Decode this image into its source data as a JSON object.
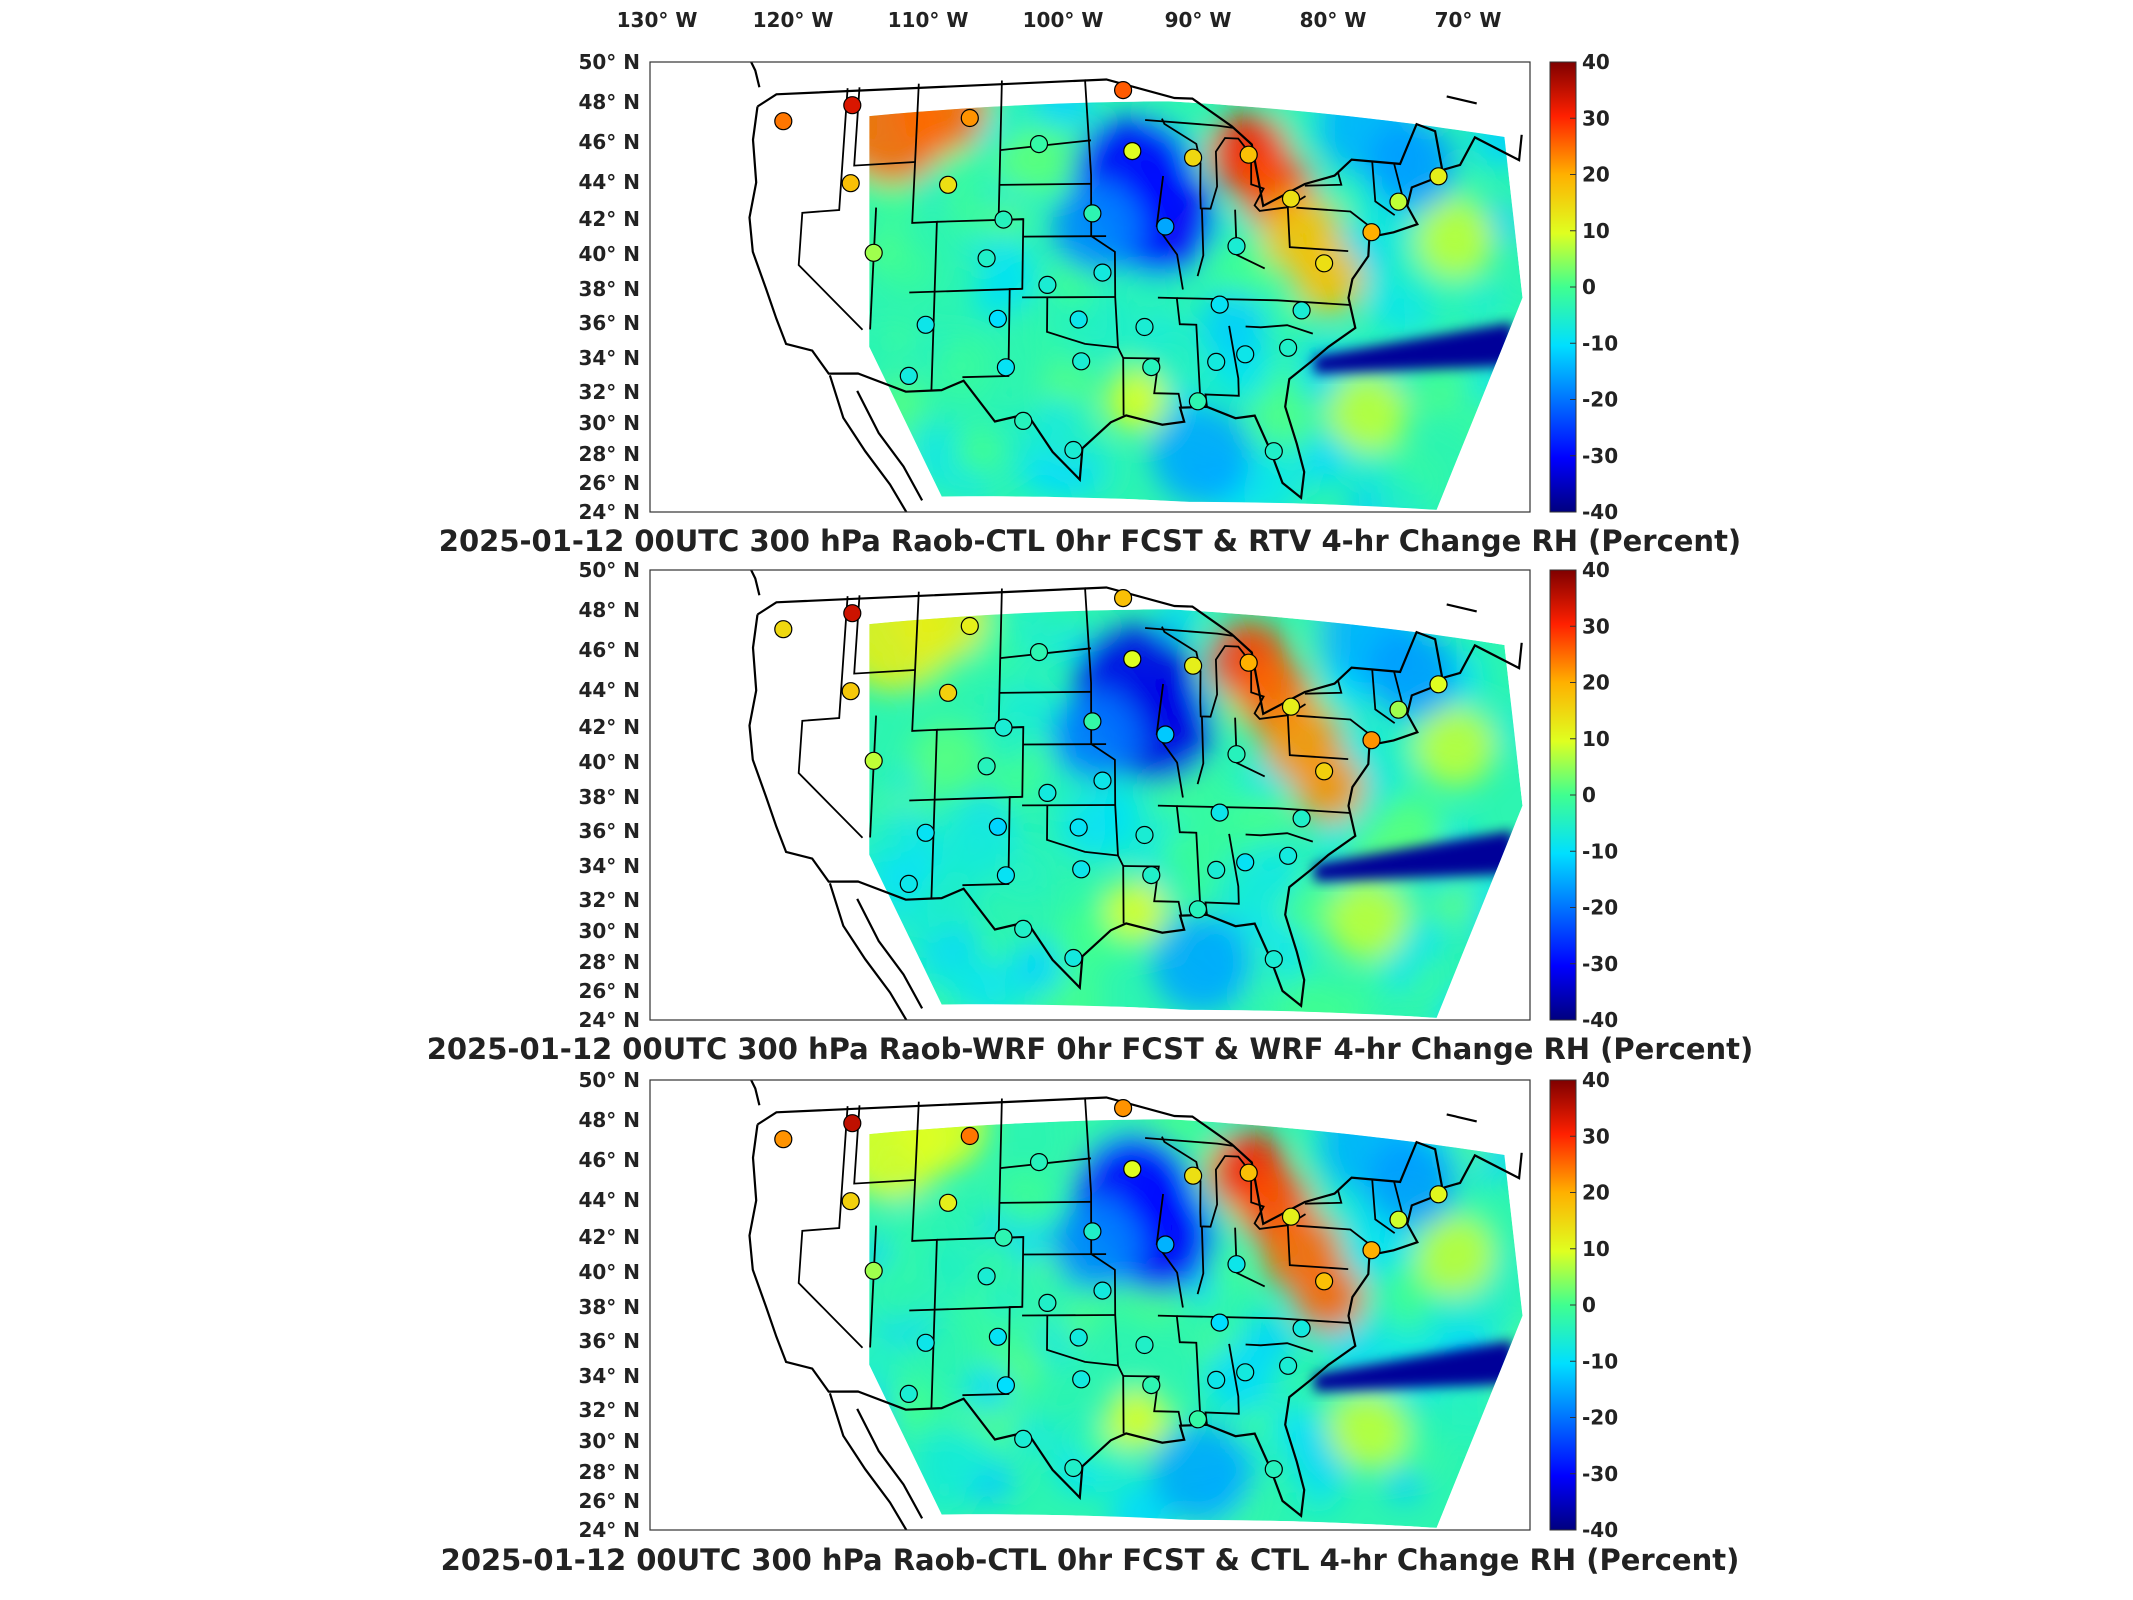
{
  "figure": {
    "top_axis_labels": [
      "130° W",
      "120° W",
      "110° W",
      "100° W",
      "90° W",
      "80° W",
      "70° W"
    ],
    "lat_labels": [
      "50° N",
      "48° N",
      "46° N",
      "44° N",
      "42° N",
      "40° N",
      "38° N",
      "36° N",
      "34° N",
      "32° N",
      "30° N",
      "28° N",
      "26° N",
      "24° N"
    ],
    "colorbar_ticks": [
      "40",
      "30",
      "20",
      "10",
      "0",
      "-10",
      "-20",
      "-30",
      "-40"
    ],
    "colors": {
      "min": "#00007f",
      "neg_strong": "#0022cc",
      "neg": "#0f9fe6",
      "neutral": "#40e0a0",
      "pos": "#e6e640",
      "pos_strong": "#ff7a00",
      "max": "#7f0000"
    }
  },
  "panels": [
    {
      "title": "2025-01-12 00UTC 300 hPa Raob-CTL 0hr FCST & RTV 4-hr Change RH (Percent)",
      "colorbar_range": [
        -40,
        40
      ],
      "features": {
        "gl_positive": 30,
        "mw_negative": -30,
        "se_band_negative": -38,
        "nw_positive": 25,
        "ohio_ne_positive": 18
      }
    },
    {
      "title": "2025-01-12 00UTC 300 hPa Raob-WRF 0hr FCST & WRF 4-hr Change RH (Percent)",
      "colorbar_range": [
        -40,
        40
      ],
      "features": {
        "gl_positive": 28,
        "mw_negative": -32,
        "se_band_negative": -38,
        "nw_positive": 12,
        "ohio_ne_positive": 22
      }
    },
    {
      "title": "2025-01-12 00UTC 300 hPa Raob-CTL 0hr FCST & CTL 4-hr Change RH (Percent)",
      "colorbar_range": [
        -40,
        40
      ],
      "features": {
        "gl_positive": 30,
        "mw_negative": -30,
        "se_band_negative": -38,
        "nw_positive": 10,
        "ohio_ne_positive": 25
      }
    }
  ],
  "stations": [
    {
      "lon": -122.2,
      "lat": 47.4,
      "v": [
        24,
        15,
        22
      ]
    },
    {
      "lon": -116.5,
      "lat": 48.0,
      "v": [
        33,
        34,
        35
      ]
    },
    {
      "lon": -106.6,
      "lat": 46.9,
      "v": [
        22,
        12,
        24
      ]
    },
    {
      "lon": -93.8,
      "lat": 48.4,
      "v": [
        26,
        18,
        22
      ]
    },
    {
      "lon": -116.2,
      "lat": 43.5,
      "v": [
        18,
        17,
        16
      ]
    },
    {
      "lon": -108.2,
      "lat": 43.1,
      "v": [
        14,
        16,
        12
      ]
    },
    {
      "lon": -100.8,
      "lat": 45.3,
      "v": [
        -2,
        -3,
        -4
      ]
    },
    {
      "lon": -93.1,
      "lat": 44.9,
      "v": [
        10,
        10,
        10
      ]
    },
    {
      "lon": -88.1,
      "lat": 44.6,
      "v": [
        15,
        12,
        14
      ]
    },
    {
      "lon": -83.5,
      "lat": 44.9,
      "v": [
        18,
        20,
        18
      ]
    },
    {
      "lon": -80.2,
      "lat": 42.5,
      "v": [
        14,
        12,
        12
      ]
    },
    {
      "lon": -71.4,
      "lat": 42.8,
      "v": [
        8,
        6,
        9
      ]
    },
    {
      "lon": -67.9,
      "lat": 44.5,
      "v": [
        12,
        10,
        11
      ]
    },
    {
      "lon": -114.0,
      "lat": 39.4,
      "v": [
        6,
        8,
        6
      ]
    },
    {
      "lon": -103.6,
      "lat": 41.0,
      "v": [
        -4,
        -6,
        -3
      ]
    },
    {
      "lon": -96.4,
      "lat": 41.3,
      "v": [
        -3,
        -2,
        -5
      ]
    },
    {
      "lon": -90.5,
      "lat": 40.6,
      "v": [
        -15,
        -12,
        -14
      ]
    },
    {
      "lon": -84.8,
      "lat": 39.6,
      "v": [
        -6,
        -4,
        -8
      ]
    },
    {
      "lon": -77.8,
      "lat": 38.9,
      "v": [
        14,
        16,
        18
      ]
    },
    {
      "lon": -73.8,
      "lat": 40.9,
      "v": [
        20,
        22,
        20
      ]
    },
    {
      "lon": -104.9,
      "lat": 38.8,
      "v": [
        -5,
        -4,
        -6
      ]
    },
    {
      "lon": -100.0,
      "lat": 37.2,
      "v": [
        -6,
        -7,
        -5
      ]
    },
    {
      "lon": -95.6,
      "lat": 37.9,
      "v": [
        -7,
        -8,
        -7
      ]
    },
    {
      "lon": -86.3,
      "lat": 36.2,
      "v": [
        -9,
        -8,
        -10
      ]
    },
    {
      "lon": -79.8,
      "lat": 36.1,
      "v": [
        -6,
        -5,
        -7
      ]
    },
    {
      "lon": -109.6,
      "lat": 35.1,
      "v": [
        -8,
        -9,
        -8
      ]
    },
    {
      "lon": -103.9,
      "lat": 35.3,
      "v": [
        -10,
        -11,
        -9
      ]
    },
    {
      "lon": -97.5,
      "lat": 35.2,
      "v": [
        -8,
        -9,
        -7
      ]
    },
    {
      "lon": -92.3,
      "lat": 34.8,
      "v": [
        -6,
        -6,
        -5
      ]
    },
    {
      "lon": -81.0,
      "lat": 33.9,
      "v": [
        -5,
        -7,
        -6
      ]
    },
    {
      "lon": -110.8,
      "lat": 32.2,
      "v": [
        -7,
        -8,
        -6
      ]
    },
    {
      "lon": -103.2,
      "lat": 32.5,
      "v": [
        -9,
        -9,
        -10
      ]
    },
    {
      "lon": -97.3,
      "lat": 32.8,
      "v": [
        -6,
        -8,
        -7
      ]
    },
    {
      "lon": -91.8,
      "lat": 32.5,
      "v": [
        -4,
        -5,
        -3
      ]
    },
    {
      "lon": -86.7,
      "lat": 32.9,
      "v": [
        -7,
        -6,
        -8
      ]
    },
    {
      "lon": -84.4,
      "lat": 33.4,
      "v": [
        -8,
        -9,
        -7
      ]
    },
    {
      "lon": -97.9,
      "lat": 27.7,
      "v": [
        -6,
        -7,
        -5
      ]
    },
    {
      "lon": -101.8,
      "lat": 29.4,
      "v": [
        -4,
        -5,
        -6
      ]
    },
    {
      "lon": -82.4,
      "lat": 27.9,
      "v": [
        -5,
        -6,
        -4
      ]
    },
    {
      "lon": -88.2,
      "lat": 30.6,
      "v": [
        -3,
        -4,
        -2
      ]
    }
  ]
}
